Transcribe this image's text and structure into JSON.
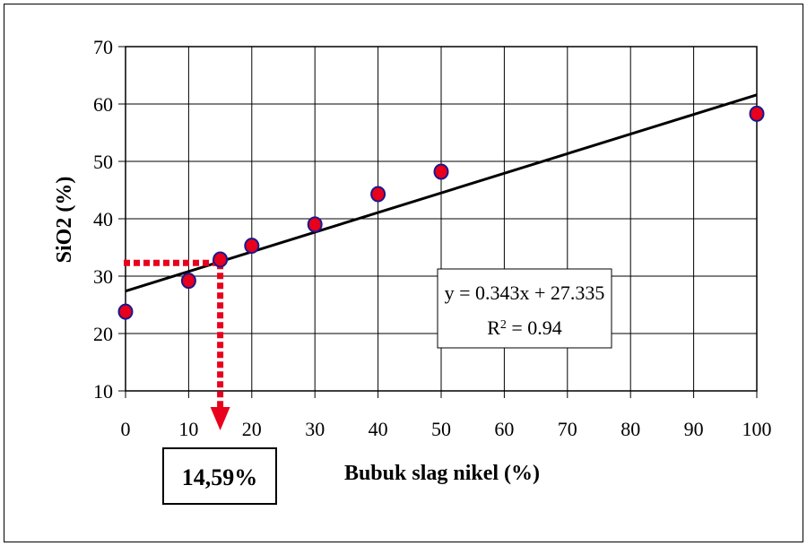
{
  "chart_data": {
    "type": "scatter",
    "title": "",
    "xlabel": "Bubuk slag nikel (%)",
    "ylabel": "SiO2 (%)",
    "x_categories": [
      "0",
      "10",
      "20",
      "30",
      "40",
      "50",
      "60",
      "70",
      "80",
      "90",
      "100"
    ],
    "ylim": [
      10,
      70
    ],
    "y_ticks": [
      10,
      20,
      30,
      40,
      50,
      60,
      70
    ],
    "grid": true,
    "series": [
      {
        "points": [
          {
            "x": 0,
            "y": 23.8
          },
          {
            "x": 10,
            "y": 29.2
          },
          {
            "x": 15,
            "y": 32.9
          },
          {
            "x": 20,
            "y": 35.3
          },
          {
            "x": 30,
            "y": 39.0
          },
          {
            "x": 40,
            "y": 44.3
          },
          {
            "x": 50,
            "y": 48.2
          },
          {
            "x": 100,
            "y": 58.3
          }
        ],
        "marker_fill": "#e8001c",
        "marker_stroke": "#1a1a8c"
      }
    ],
    "trendline": {
      "y_start": 27.4,
      "y_end": 61.6,
      "equation": "y = 0.343x + 27.335",
      "r2_prefix": "R",
      "r2_sup": "2",
      "r2_value": " = 0.94"
    },
    "annotation": {
      "x_value": 15,
      "y_value": 32.3,
      "label": "14,59%",
      "color": "#e8001c"
    }
  }
}
